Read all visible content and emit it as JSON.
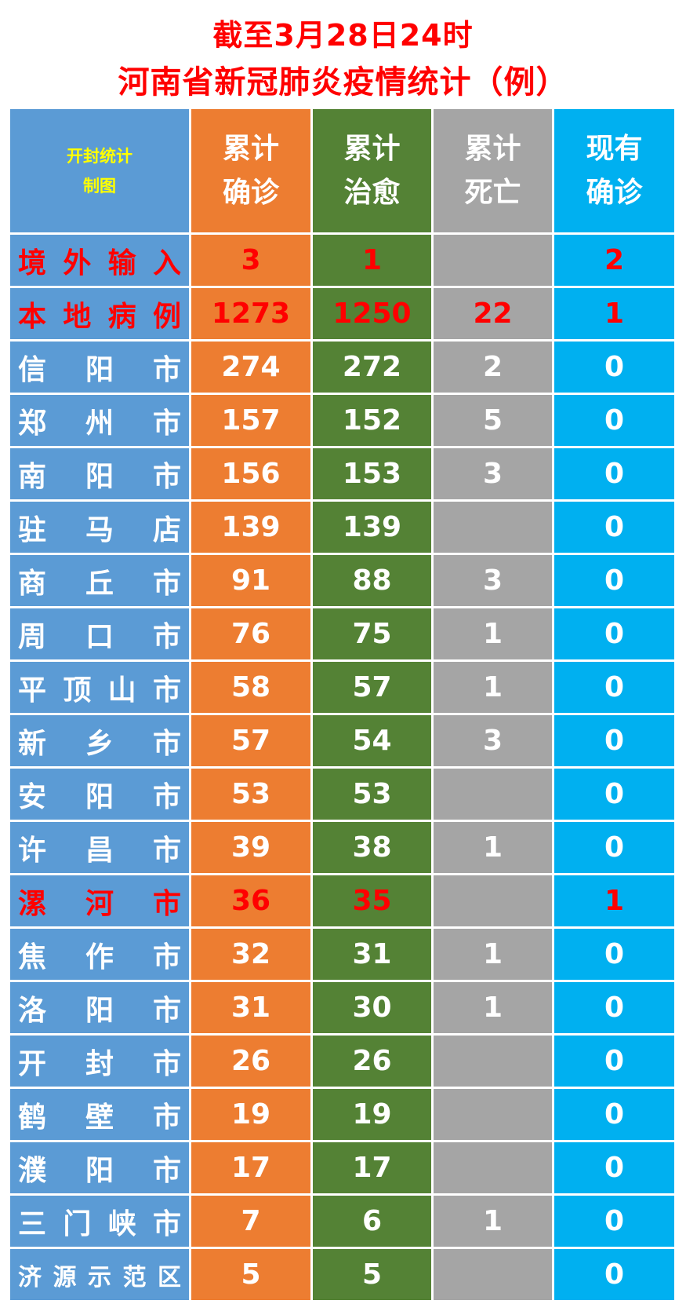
{
  "title_line1": "截至3月28日24时",
  "title_line2": "河南省新冠肺炎疫情统计（例）",
  "corner": {
    "line1": "开封统计",
    "line2": "制图"
  },
  "headers": [
    {
      "line1": "累计",
      "line2": "确诊"
    },
    {
      "line1": "累计",
      "line2": "治愈"
    },
    {
      "line1": "累计",
      "line2": "死亡"
    },
    {
      "line1": "现有",
      "line2": "确诊"
    }
  ],
  "colors": {
    "label": "#5b9bd5",
    "confirmed": "#ed7d31",
    "cured": "#548235",
    "deaths": "#a5a5a5",
    "current": "#00b0f0",
    "highlight": "#ff0000",
    "corner_text": "#ffff00"
  },
  "rows": [
    {
      "name": "境外输入",
      "confirmed": "3",
      "cured": "1",
      "deaths": "",
      "current": "2",
      "highlight": true
    },
    {
      "name": "本地病例",
      "confirmed": "1273",
      "cured": "1250",
      "deaths": "22",
      "current": "1",
      "highlight": true
    },
    {
      "name": "信阳市",
      "confirmed": "274",
      "cured": "272",
      "deaths": "2",
      "current": "0"
    },
    {
      "name": "郑州市",
      "confirmed": "157",
      "cured": "152",
      "deaths": "5",
      "current": "0"
    },
    {
      "name": "南阳市",
      "confirmed": "156",
      "cured": "153",
      "deaths": "3",
      "current": "0"
    },
    {
      "name": "驻马店",
      "confirmed": "139",
      "cured": "139",
      "deaths": "",
      "current": "0"
    },
    {
      "name": "商丘市",
      "confirmed": "91",
      "cured": "88",
      "deaths": "3",
      "current": "0"
    },
    {
      "name": "周口市",
      "confirmed": "76",
      "cured": "75",
      "deaths": "1",
      "current": "0"
    },
    {
      "name": "平顶山市",
      "confirmed": "58",
      "cured": "57",
      "deaths": "1",
      "current": "0"
    },
    {
      "name": "新乡市",
      "confirmed": "57",
      "cured": "54",
      "deaths": "3",
      "current": "0"
    },
    {
      "name": "安阳市",
      "confirmed": "53",
      "cured": "53",
      "deaths": "",
      "current": "0"
    },
    {
      "name": "许昌市",
      "confirmed": "39",
      "cured": "38",
      "deaths": "1",
      "current": "0"
    },
    {
      "name": "漯河市",
      "confirmed": "36",
      "cured": "35",
      "deaths": "",
      "current": "1",
      "highlight_name": true
    },
    {
      "name": "焦作市",
      "confirmed": "32",
      "cured": "31",
      "deaths": "1",
      "current": "0"
    },
    {
      "name": "洛阳市",
      "confirmed": "31",
      "cured": "30",
      "deaths": "1",
      "current": "0"
    },
    {
      "name": "开封市",
      "confirmed": "26",
      "cured": "26",
      "deaths": "",
      "current": "0"
    },
    {
      "name": "鹤壁市",
      "confirmed": "19",
      "cured": "19",
      "deaths": "",
      "current": "0"
    },
    {
      "name": "濮阳市",
      "confirmed": "17",
      "cured": "17",
      "deaths": "",
      "current": "0"
    },
    {
      "name": "三门峡市",
      "confirmed": "7",
      "cured": "6",
      "deaths": "1",
      "current": "0"
    },
    {
      "name": "济源示范区",
      "confirmed": "5",
      "cured": "5",
      "deaths": "",
      "current": "0"
    }
  ]
}
